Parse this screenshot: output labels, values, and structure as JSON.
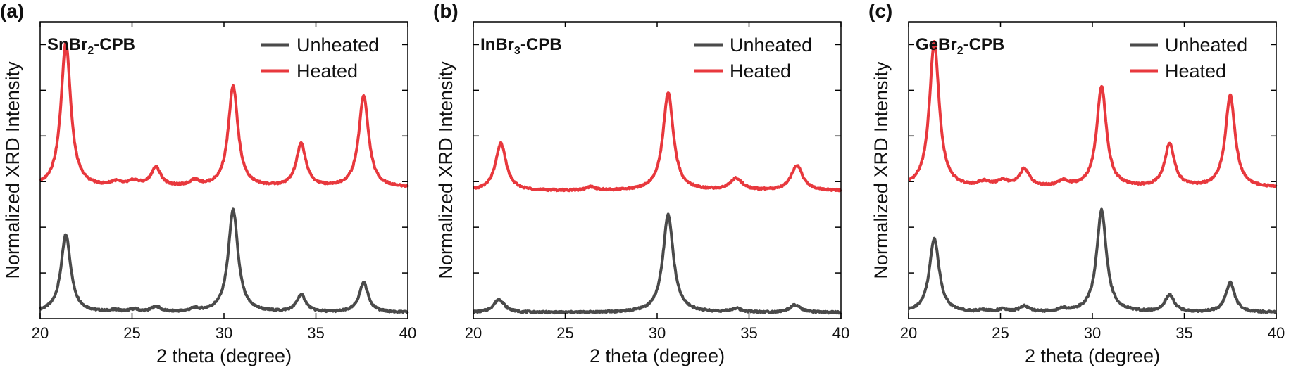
{
  "chart_data": [
    {
      "type": "line",
      "panel_label": "(a)",
      "title": "SnBr2-CPB",
      "title_main": "SnBr",
      "title_sub": "2",
      "title_suffix": "-CPB",
      "xlabel": "2 theta (degree)",
      "ylabel": "Normalized XRD Intensity",
      "xlim": [
        20,
        40
      ],
      "ylim": [
        0,
        1
      ],
      "x_ticks": [
        "20",
        "25",
        "30",
        "35",
        "40"
      ],
      "legend_position": "top-right",
      "series": [
        {
          "name": "Unheated",
          "color": "#4a4a4a",
          "baseline": 0.02,
          "peaks": [
            {
              "center": 21.4,
              "height": 0.262,
              "width": 0.32
            },
            {
              "center": 24.1,
              "height": 0.006,
              "width": 0.3
            },
            {
              "center": 25.1,
              "height": 0.009,
              "width": 0.3
            },
            {
              "center": 26.3,
              "height": 0.018,
              "width": 0.3
            },
            {
              "center": 28.4,
              "height": 0.009,
              "width": 0.3
            },
            {
              "center": 30.5,
              "height": 0.345,
              "width": 0.32
            },
            {
              "center": 34.2,
              "height": 0.058,
              "width": 0.3
            },
            {
              "center": 37.6,
              "height": 0.1,
              "width": 0.3
            }
          ]
        },
        {
          "name": "Heated",
          "color": "#e8383d",
          "baseline": 0.44,
          "peaks": [
            {
              "center": 21.4,
              "height": 0.49,
              "width": 0.32
            },
            {
              "center": 24.1,
              "height": 0.015,
              "width": 0.35
            },
            {
              "center": 25.1,
              "height": 0.018,
              "width": 0.4
            },
            {
              "center": 26.3,
              "height": 0.065,
              "width": 0.33
            },
            {
              "center": 28.4,
              "height": 0.02,
              "width": 0.35
            },
            {
              "center": 30.5,
              "height": 0.34,
              "width": 0.32
            },
            {
              "center": 34.2,
              "height": 0.145,
              "width": 0.32
            },
            {
              "center": 37.6,
              "height": 0.31,
              "width": 0.32
            }
          ]
        }
      ]
    },
    {
      "type": "line",
      "panel_label": "(b)",
      "title": "InBr3-CPB",
      "title_main": "InBr",
      "title_sub": "3",
      "title_suffix": "-CPB",
      "xlabel": "2 theta (degree)",
      "ylabel": "Normalized XRD Intensity",
      "xlim": [
        20,
        40
      ],
      "ylim": [
        0,
        1
      ],
      "x_ticks": [
        "20",
        "25",
        "30",
        "35",
        "40"
      ],
      "legend_position": "top-right",
      "series": [
        {
          "name": "Unheated",
          "color": "#4a4a4a",
          "baseline": 0.02,
          "peaks": [
            {
              "center": 21.4,
              "height": 0.045,
              "width": 0.35
            },
            {
              "center": 30.6,
              "height": 0.33,
              "width": 0.34
            },
            {
              "center": 34.3,
              "height": 0.012,
              "width": 0.35
            },
            {
              "center": 37.5,
              "height": 0.025,
              "width": 0.35
            }
          ]
        },
        {
          "name": "Heated",
          "color": "#e8383d",
          "baseline": 0.43,
          "peaks": [
            {
              "center": 21.5,
              "height": 0.16,
              "width": 0.35
            },
            {
              "center": 26.4,
              "height": 0.012,
              "width": 0.3
            },
            {
              "center": 30.6,
              "height": 0.33,
              "width": 0.34
            },
            {
              "center": 34.3,
              "height": 0.04,
              "width": 0.4
            },
            {
              "center": 37.6,
              "height": 0.085,
              "width": 0.38
            }
          ]
        }
      ]
    },
    {
      "type": "line",
      "panel_label": "(c)",
      "title": "GeBr2-CPB",
      "title_main": "GeBr",
      "title_sub": "2",
      "title_suffix": "-CPB",
      "xlabel": "2 theta (degree)",
      "ylabel": "Normalized XRD Intensity",
      "xlim": [
        20,
        40
      ],
      "ylim": [
        0,
        1
      ],
      "x_ticks": [
        "20",
        "25",
        "30",
        "35",
        "40"
      ],
      "legend_position": "top-right",
      "series": [
        {
          "name": "Unheated",
          "color": "#4a4a4a",
          "baseline": 0.02,
          "peaks": [
            {
              "center": 21.4,
              "height": 0.25,
              "width": 0.32
            },
            {
              "center": 24.1,
              "height": 0.006,
              "width": 0.3
            },
            {
              "center": 25.1,
              "height": 0.009,
              "width": 0.3
            },
            {
              "center": 26.3,
              "height": 0.02,
              "width": 0.3
            },
            {
              "center": 28.4,
              "height": 0.009,
              "width": 0.3
            },
            {
              "center": 30.5,
              "height": 0.345,
              "width": 0.32
            },
            {
              "center": 34.2,
              "height": 0.058,
              "width": 0.3
            },
            {
              "center": 37.5,
              "height": 0.1,
              "width": 0.3
            }
          ]
        },
        {
          "name": "Heated",
          "color": "#e8383d",
          "baseline": 0.44,
          "peaks": [
            {
              "center": 21.4,
              "height": 0.49,
              "width": 0.32
            },
            {
              "center": 24.1,
              "height": 0.015,
              "width": 0.35
            },
            {
              "center": 25.1,
              "height": 0.02,
              "width": 0.4
            },
            {
              "center": 26.3,
              "height": 0.06,
              "width": 0.33
            },
            {
              "center": 28.4,
              "height": 0.018,
              "width": 0.35
            },
            {
              "center": 30.5,
              "height": 0.34,
              "width": 0.32
            },
            {
              "center": 34.2,
              "height": 0.145,
              "width": 0.32
            },
            {
              "center": 37.5,
              "height": 0.31,
              "width": 0.32
            }
          ]
        }
      ]
    }
  ]
}
